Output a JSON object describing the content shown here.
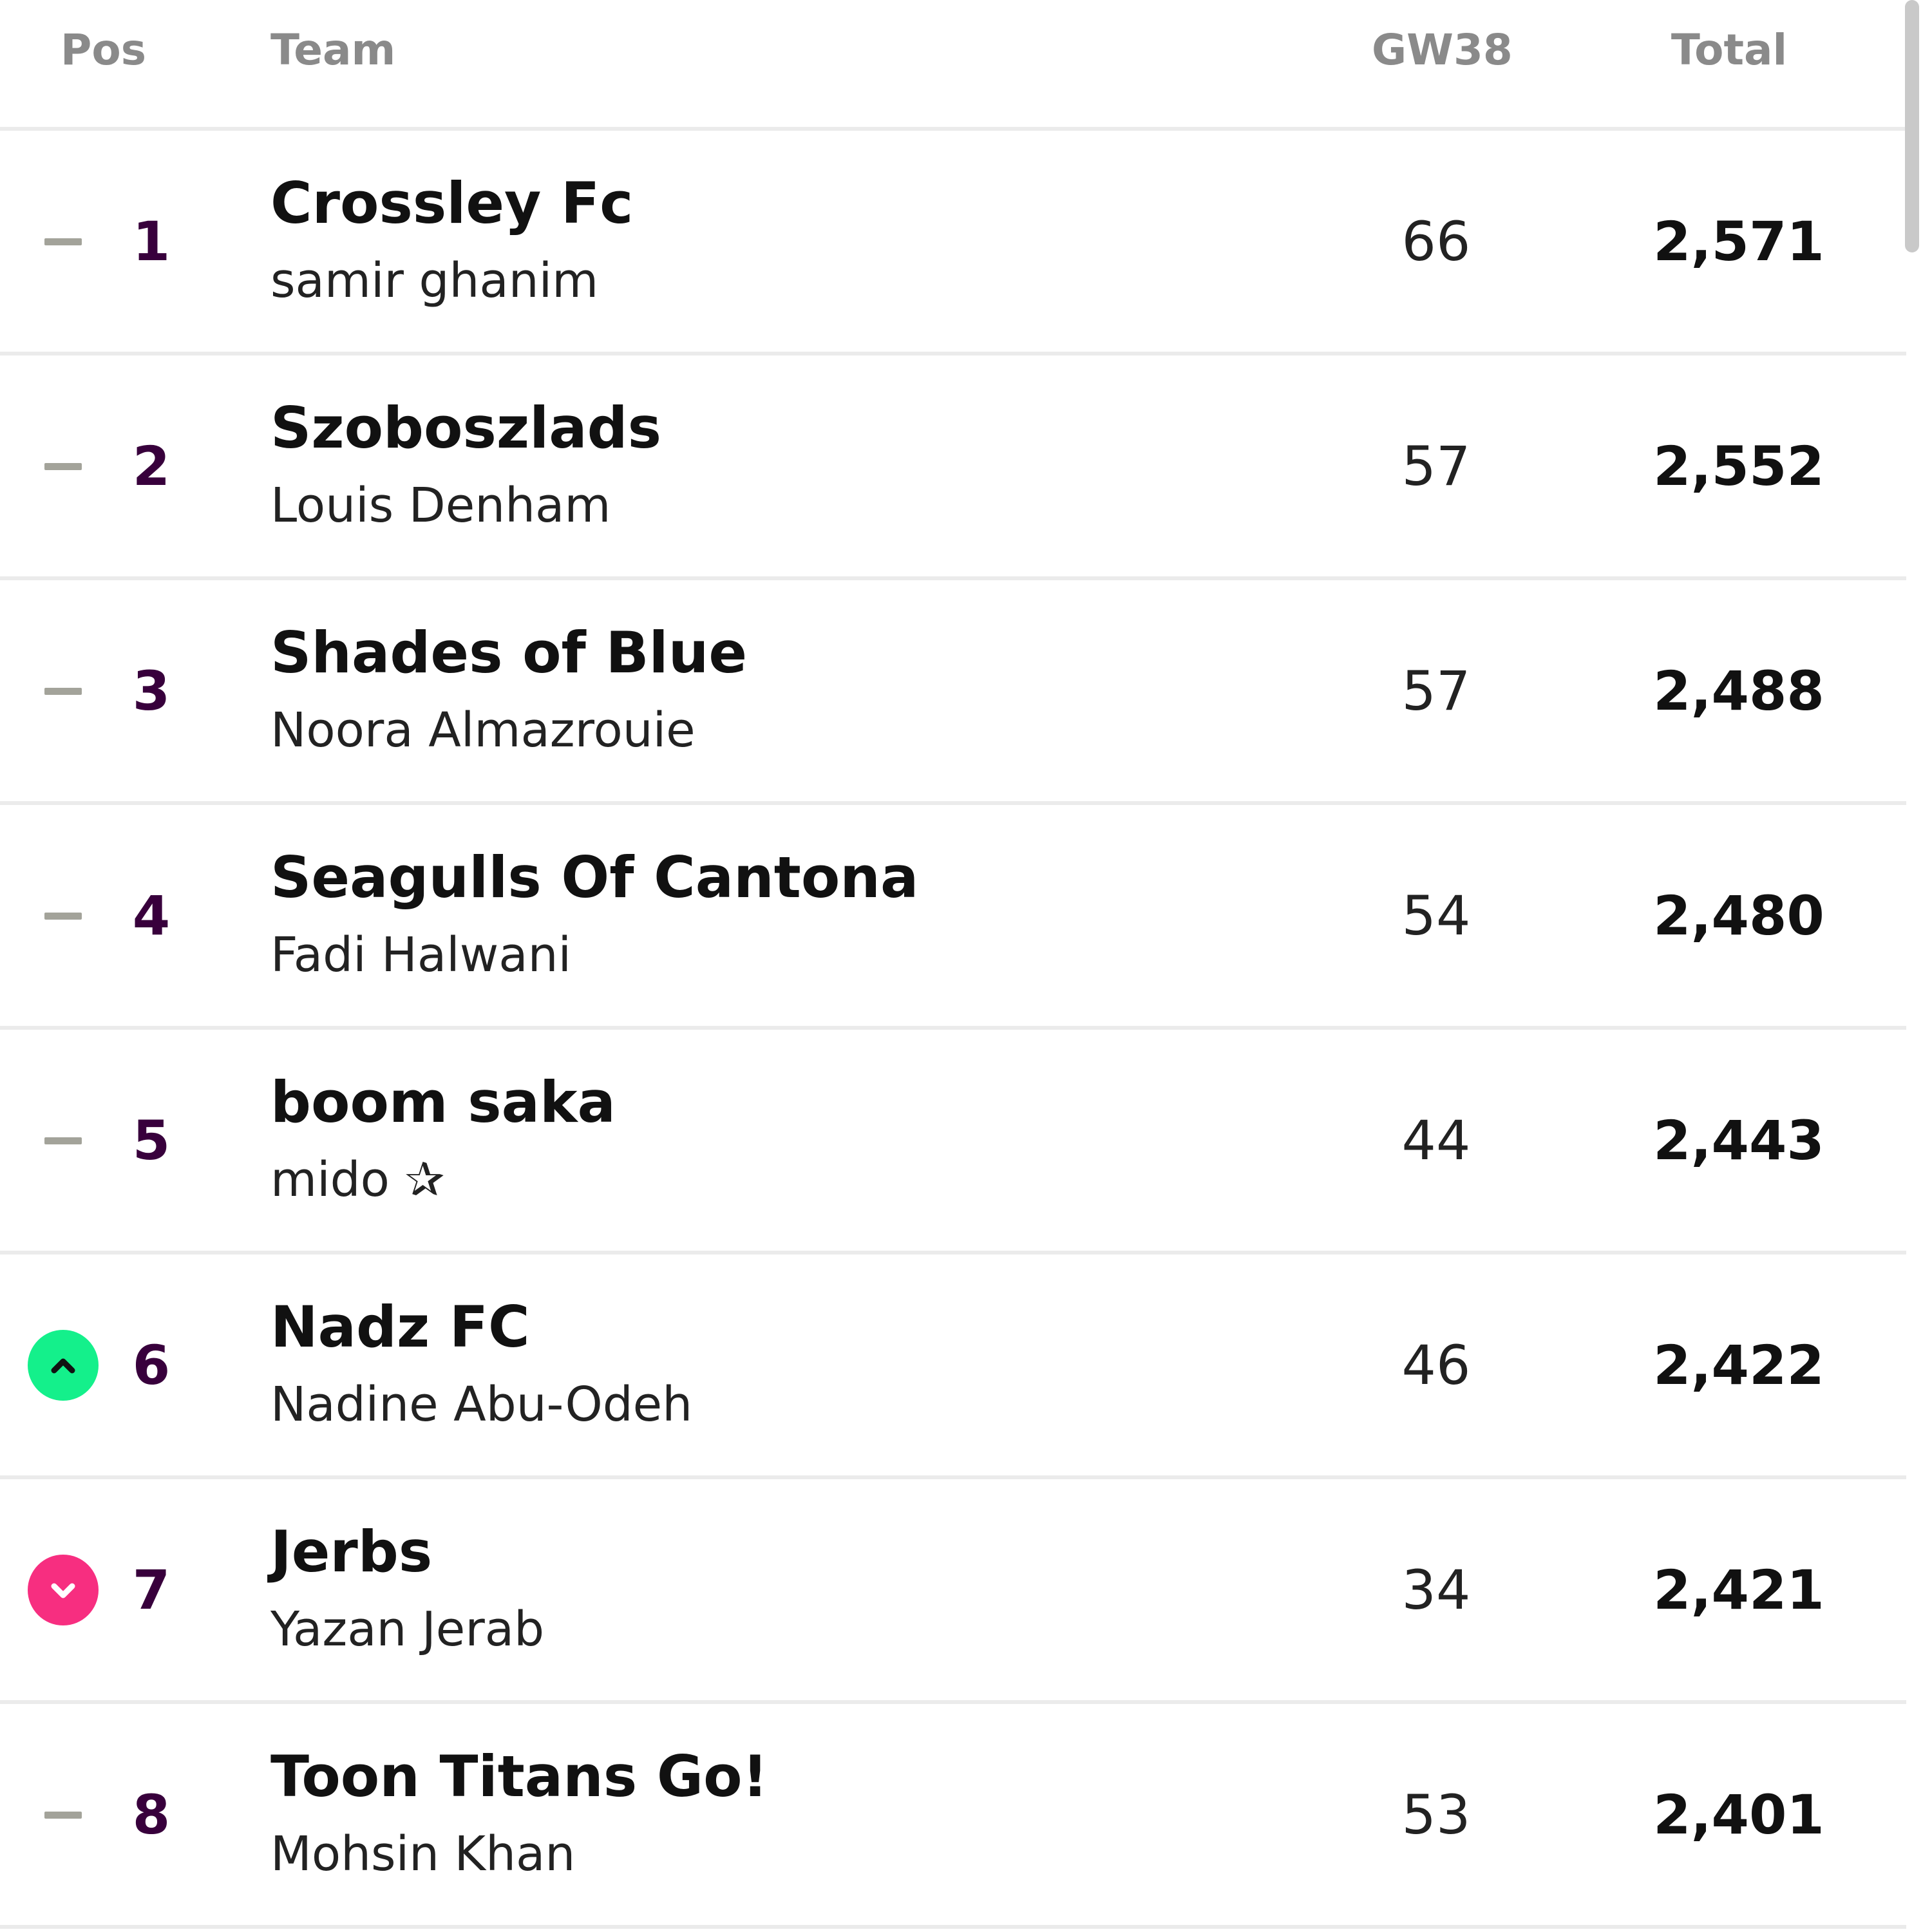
{
  "header": {
    "pos": "Pos",
    "team": "Team",
    "gameweek": "GW38",
    "total": "Total"
  },
  "rows": [
    {
      "rank": "1",
      "movement": "same",
      "team": "Crossley Fc",
      "manager": "samir ghanim",
      "gw": "66",
      "total": "2,571"
    },
    {
      "rank": "2",
      "movement": "same",
      "team": "Szoboszlads",
      "manager": "Louis Denham",
      "gw": "57",
      "total": "2,552"
    },
    {
      "rank": "3",
      "movement": "same",
      "team": "Shades of Blue",
      "manager": "Noora Almazrouie",
      "gw": "57",
      "total": "2,488"
    },
    {
      "rank": "4",
      "movement": "same",
      "team": "Seagulls Of Cantona",
      "manager": "Fadi Halwani",
      "gw": "54",
      "total": "2,480"
    },
    {
      "rank": "5",
      "movement": "same",
      "team": "boom saka",
      "manager": "mido ✰",
      "gw": "44",
      "total": "2,443"
    },
    {
      "rank": "6",
      "movement": "up",
      "team": "Nadz FC",
      "manager": "Nadine Abu-Odeh",
      "gw": "46",
      "total": "2,422"
    },
    {
      "rank": "7",
      "movement": "down",
      "team": "Jerbs",
      "manager": "Yazan Jerab",
      "gw": "34",
      "total": "2,421"
    },
    {
      "rank": "8",
      "movement": "same",
      "team": "Toon Titans Go!",
      "manager": "Mohsin Khan",
      "gw": "53",
      "total": "2,401"
    }
  ],
  "colors": {
    "rank_text": "#38003c",
    "movement_up": "#14f08b",
    "movement_down": "#f72e80",
    "movement_same": "#a3a39a"
  },
  "icons": {
    "same": "dash-icon",
    "up": "chevron-up-icon",
    "down": "chevron-down-icon"
  }
}
